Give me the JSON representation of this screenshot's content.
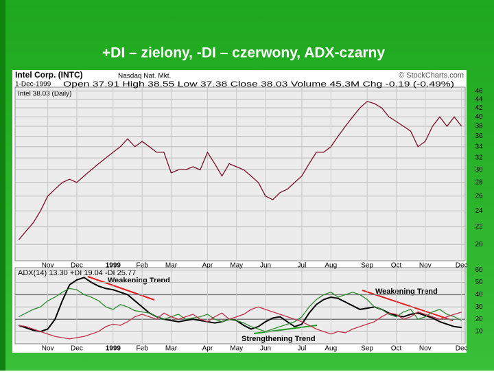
{
  "title": "+DI – zielony, -DI – czerwony, ADX-czarny",
  "chart_data": [
    {
      "type": "line",
      "title": "Intel Corp. (INTC)",
      "exchange": "Nasdaq Nat. Mkt.",
      "source": "© StockCharts.com",
      "date": "1-Dec-1999",
      "quote": "Open 37.91 High 38.55 Low 37.38 Close 38.03 Volume 45.3M Chg -0.19 (-0.49%)",
      "legend_text": "Intel 38.03 (Daily)",
      "categories": [
        null,
        null,
        null,
        null,
        "Nov",
        null,
        null,
        null,
        "Dec",
        null,
        null,
        null,
        null,
        "1999",
        null,
        null,
        null,
        "Feb",
        null,
        null,
        null,
        "Mar",
        null,
        null,
        null,
        null,
        "Apr",
        null,
        null,
        null,
        "May",
        null,
        null,
        null,
        "Jun",
        null,
        null,
        null,
        null,
        "Jul",
        null,
        null,
        null,
        "Aug",
        null,
        null,
        null,
        null,
        "Sep",
        null,
        null,
        null,
        "Oct",
        null,
        null,
        null,
        "Nov",
        null,
        null,
        null,
        null,
        "Dec"
      ],
      "values": [
        20.5,
        21.5,
        22.5,
        24,
        26,
        27,
        28,
        28.5,
        28,
        29,
        30,
        31,
        32,
        33,
        34,
        35.5,
        34,
        35,
        34,
        33,
        33,
        29.5,
        30,
        30,
        30.5,
        30,
        33,
        31,
        29,
        31,
        30.5,
        30,
        29,
        28,
        26,
        25.5,
        26.5,
        27,
        28,
        29,
        31,
        33,
        33,
        34,
        36,
        38,
        40,
        42,
        43.5,
        43,
        42,
        40,
        39,
        38,
        37,
        34,
        35,
        38,
        40,
        38,
        40,
        38
      ],
      "color": "#7a1028",
      "log_scale": true,
      "grid": true,
      "ylim": [
        18.3,
        47
      ],
      "yticks": [
        20,
        22,
        24,
        26,
        28,
        30,
        32,
        34,
        36,
        38,
        40,
        42,
        44,
        46
      ]
    },
    {
      "type": "line",
      "categories": [
        null,
        null,
        null,
        null,
        "Nov",
        null,
        null,
        null,
        "Dec",
        null,
        null,
        null,
        null,
        "1999",
        null,
        null,
        null,
        "Feb",
        null,
        null,
        null,
        "Mar",
        null,
        null,
        null,
        null,
        "Apr",
        null,
        null,
        null,
        "May",
        null,
        null,
        null,
        "Jun",
        null,
        null,
        null,
        null,
        "Jul",
        null,
        null,
        null,
        "Aug",
        null,
        null,
        null,
        null,
        "Sep",
        null,
        null,
        null,
        "Oct",
        null,
        null,
        null,
        "Nov",
        null,
        null,
        null,
        null,
        "Dec"
      ],
      "series": [
        {
          "name": "ADX(14)",
          "legend_label": "13.30",
          "color": "#000000",
          "values": [
            15,
            13,
            11,
            10,
            12,
            20,
            35,
            48,
            52,
            54,
            50,
            47,
            45,
            44,
            42,
            40,
            35,
            30,
            25,
            22,
            20,
            19,
            18,
            19,
            20,
            19,
            18,
            17,
            18,
            20,
            19,
            15,
            12,
            14,
            18,
            21,
            22,
            18,
            14,
            16,
            25,
            32,
            36,
            38,
            37,
            34,
            31,
            28,
            29,
            30,
            28,
            25,
            23,
            22,
            24,
            25,
            23,
            21,
            18,
            16,
            14,
            13.3
          ]
        },
        {
          "name": "+DI",
          "legend_label": "19.04",
          "color": "#2e8b2e",
          "values": [
            22,
            25,
            28,
            30,
            35,
            38,
            42,
            45,
            44,
            40,
            38,
            35,
            30,
            28,
            32,
            30,
            27,
            26,
            25,
            22,
            20,
            22,
            24,
            20,
            21,
            22,
            24,
            20,
            18,
            20,
            19,
            17,
            14,
            12,
            10,
            12,
            14,
            16,
            18,
            22,
            30,
            36,
            40,
            42,
            38,
            40,
            42,
            40,
            36,
            30,
            28,
            24,
            22,
            26,
            28,
            20,
            22,
            26,
            28,
            24,
            22,
            19.04
          ]
        },
        {
          "name": "-DI",
          "legend_label": "25.77",
          "color": "#c0304a",
          "values": [
            15,
            14,
            12,
            10,
            8,
            6,
            5,
            4,
            5,
            6,
            8,
            10,
            14,
            16,
            15,
            18,
            22,
            24,
            22,
            20,
            25,
            22,
            20,
            22,
            24,
            20,
            18,
            22,
            25,
            20,
            22,
            24,
            28,
            30,
            28,
            26,
            24,
            22,
            20,
            18,
            15,
            12,
            10,
            8,
            10,
            9,
            12,
            14,
            16,
            18,
            22,
            25,
            24,
            20,
            22,
            26,
            24,
            22,
            20,
            22,
            24,
            25.77
          ]
        }
      ],
      "annotations": [
        "Weakening Trend",
        "Weakening Trend",
        "Strengthening Trend"
      ],
      "grid": true,
      "reference_lines": [
        20,
        40
      ],
      "ylim": [
        0,
        62
      ],
      "yticks": [
        10,
        20,
        30,
        40,
        50,
        60
      ]
    }
  ]
}
